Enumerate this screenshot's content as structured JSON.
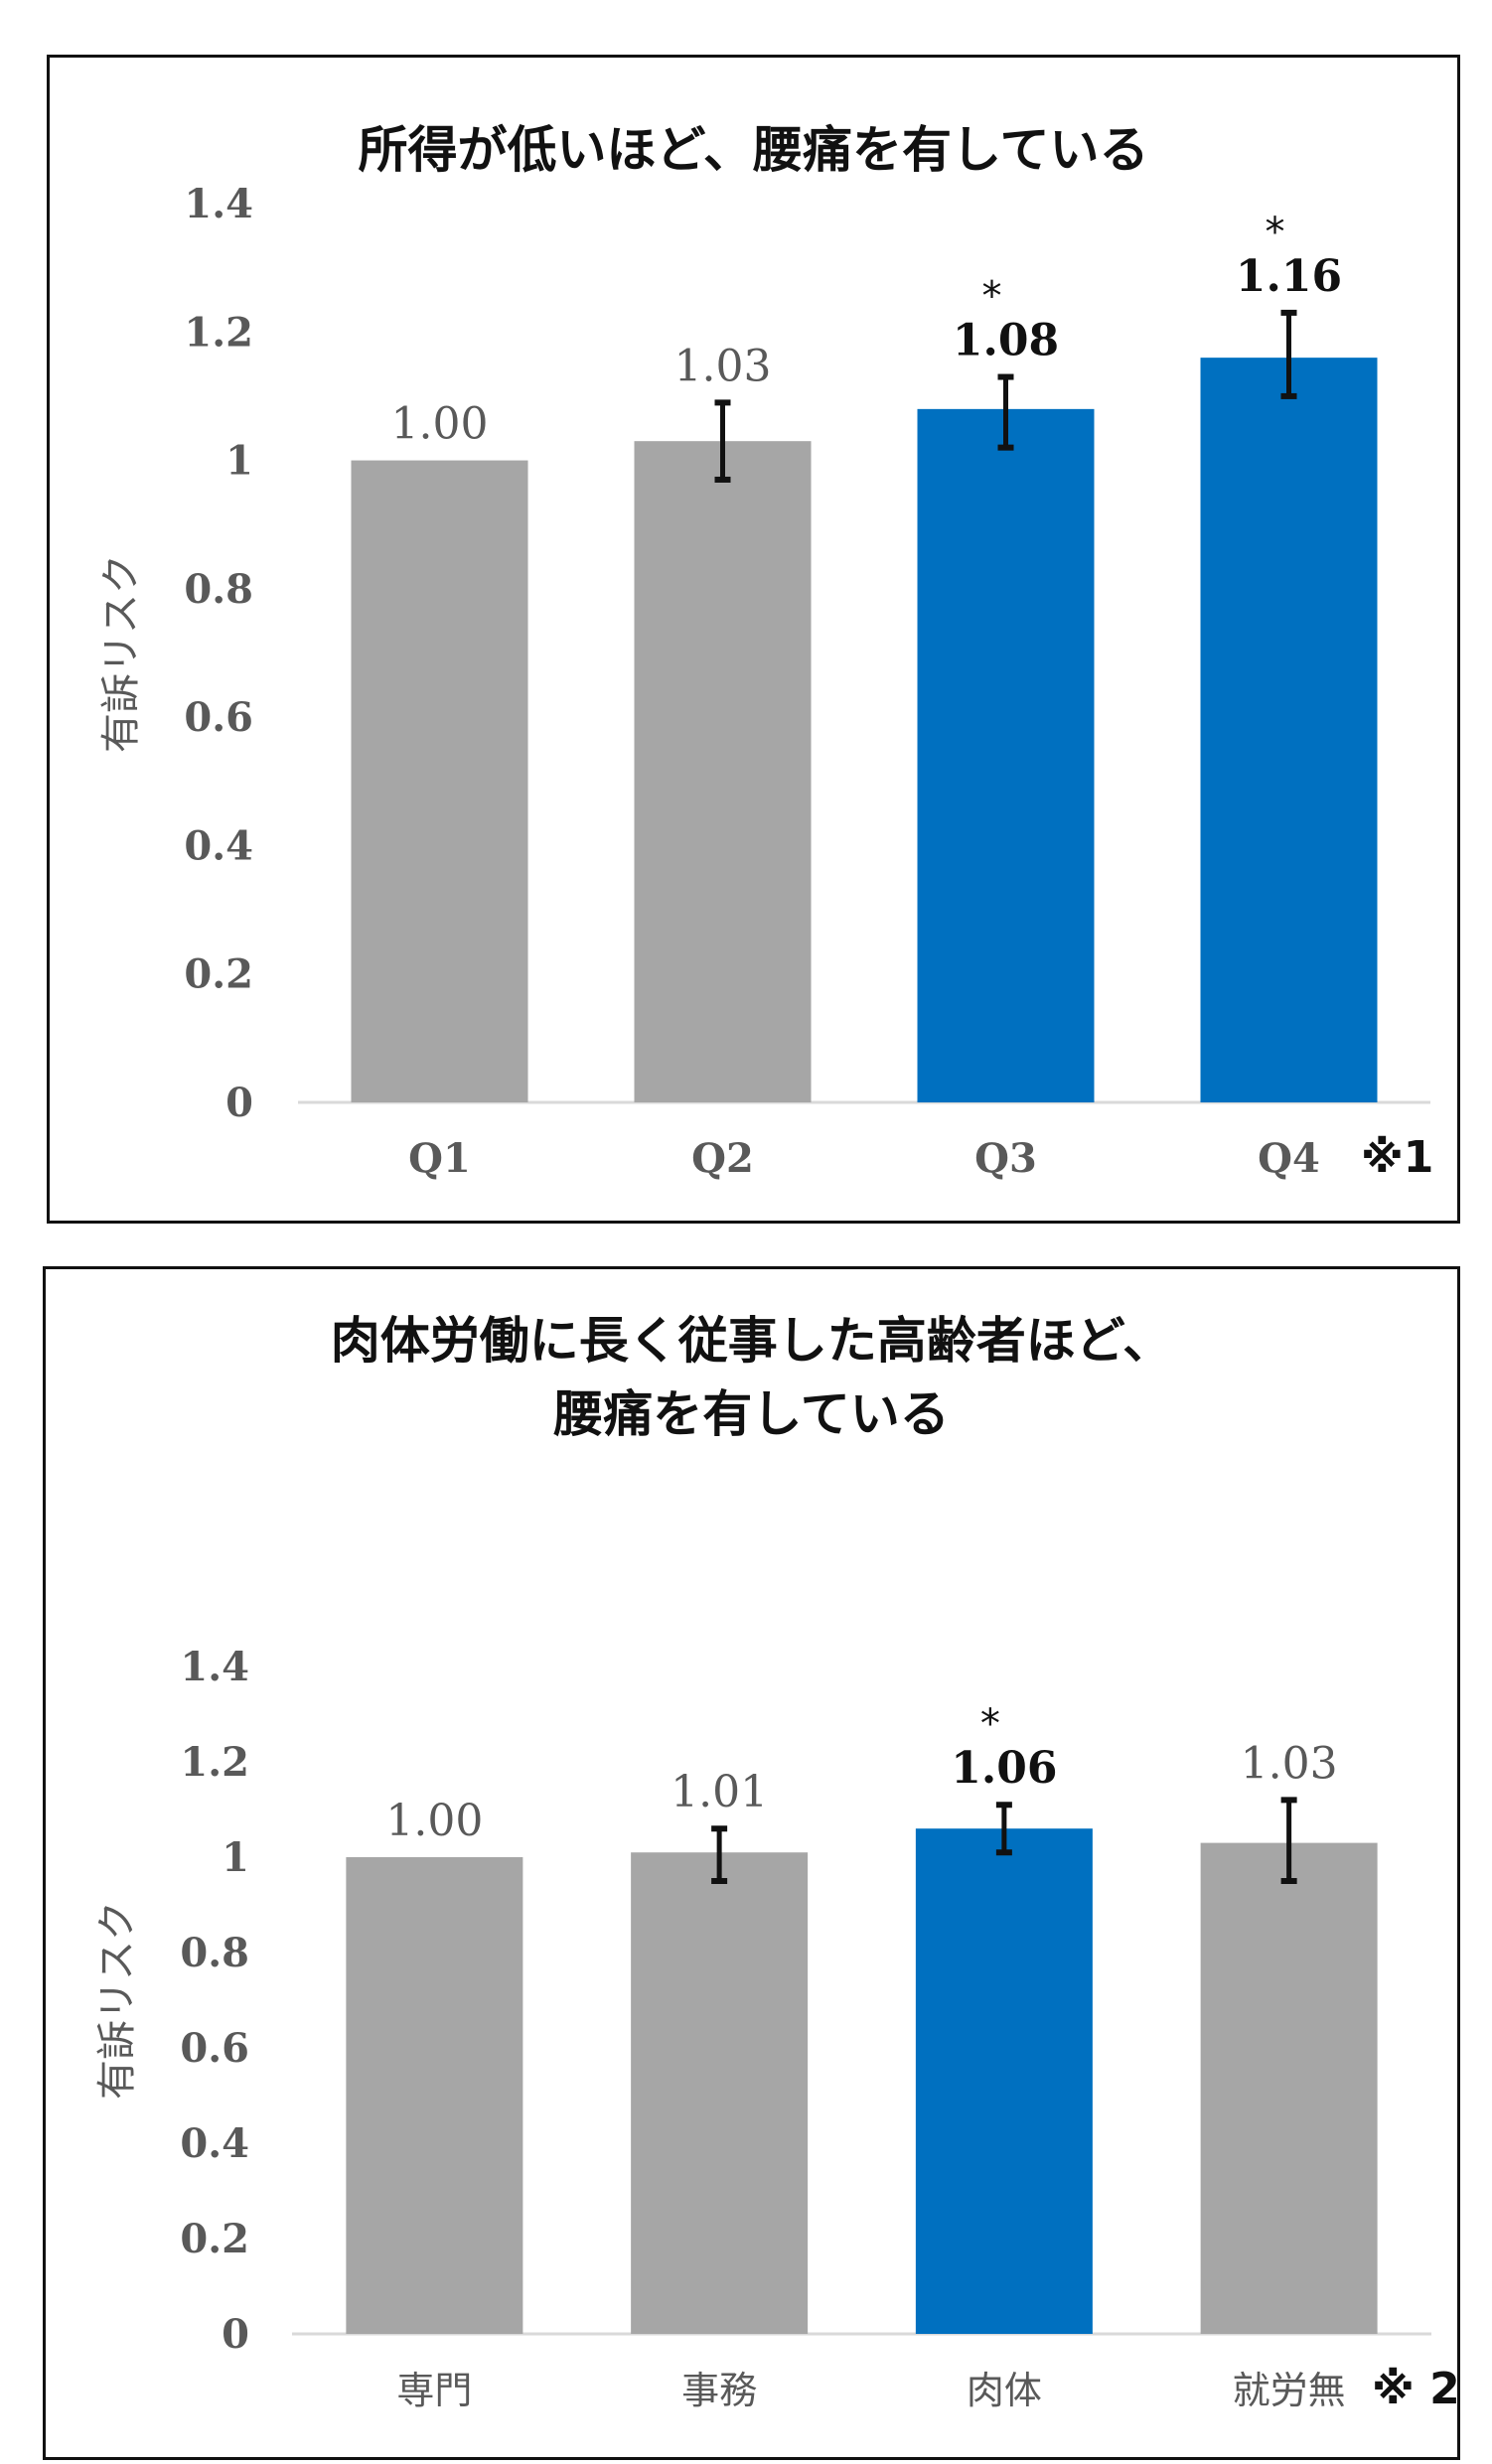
{
  "chart_data": [
    {
      "type": "bar",
      "title": "所得が低いほど、腰痛を有している",
      "ylabel": "有訴リスク",
      "xlabel": "",
      "categories": [
        "Q1",
        "Q2",
        "Q3",
        "Q4"
      ],
      "values": [
        1.0,
        1.03,
        1.08,
        1.16
      ],
      "value_labels": [
        "1.00",
        "1.03",
        "1.08",
        "1.16"
      ],
      "error_low": [
        null,
        0.97,
        1.02,
        1.1
      ],
      "error_high": [
        null,
        1.09,
        1.13,
        1.23
      ],
      "significance": [
        "",
        "",
        "*",
        "*"
      ],
      "bar_colors": [
        "#a6a6a6",
        "#a6a6a6",
        "#0070c0",
        "#0070c0"
      ],
      "ylim": [
        0,
        1.4
      ],
      "yticks": [
        0,
        0.2,
        0.4,
        0.6,
        0.8,
        1,
        1.2,
        1.4
      ],
      "ytick_labels": [
        "0",
        "0.2",
        "0.4",
        "0.6",
        "0.8",
        "1",
        "1.2",
        "1.4"
      ],
      "grid": false,
      "footnote": "※1"
    },
    {
      "type": "bar",
      "title": "肉体労働に長く従事した高齢者ほど、\n腰痛を有している",
      "ylabel": "有訴リスク",
      "xlabel": "",
      "categories": [
        "専門",
        "事務",
        "肉体",
        "就労無"
      ],
      "values": [
        1.0,
        1.01,
        1.06,
        1.03
      ],
      "value_labels": [
        "1.00",
        "1.01",
        "1.06",
        "1.03"
      ],
      "error_low": [
        null,
        0.95,
        1.01,
        0.95
      ],
      "error_high": [
        null,
        1.06,
        1.11,
        1.12
      ],
      "significance": [
        "",
        "",
        "*",
        ""
      ],
      "bar_colors": [
        "#a6a6a6",
        "#a6a6a6",
        "#0070c0",
        "#a6a6a6"
      ],
      "ylim": [
        0,
        1.4
      ],
      "yticks": [
        0,
        0.2,
        0.4,
        0.6,
        0.8,
        1,
        1.2,
        1.4
      ],
      "ytick_labels": [
        "0",
        "0.2",
        "0.4",
        "0.6",
        "0.8",
        "1",
        "1.2",
        "1.4"
      ],
      "grid": false,
      "footnote": "※ 2"
    }
  ]
}
